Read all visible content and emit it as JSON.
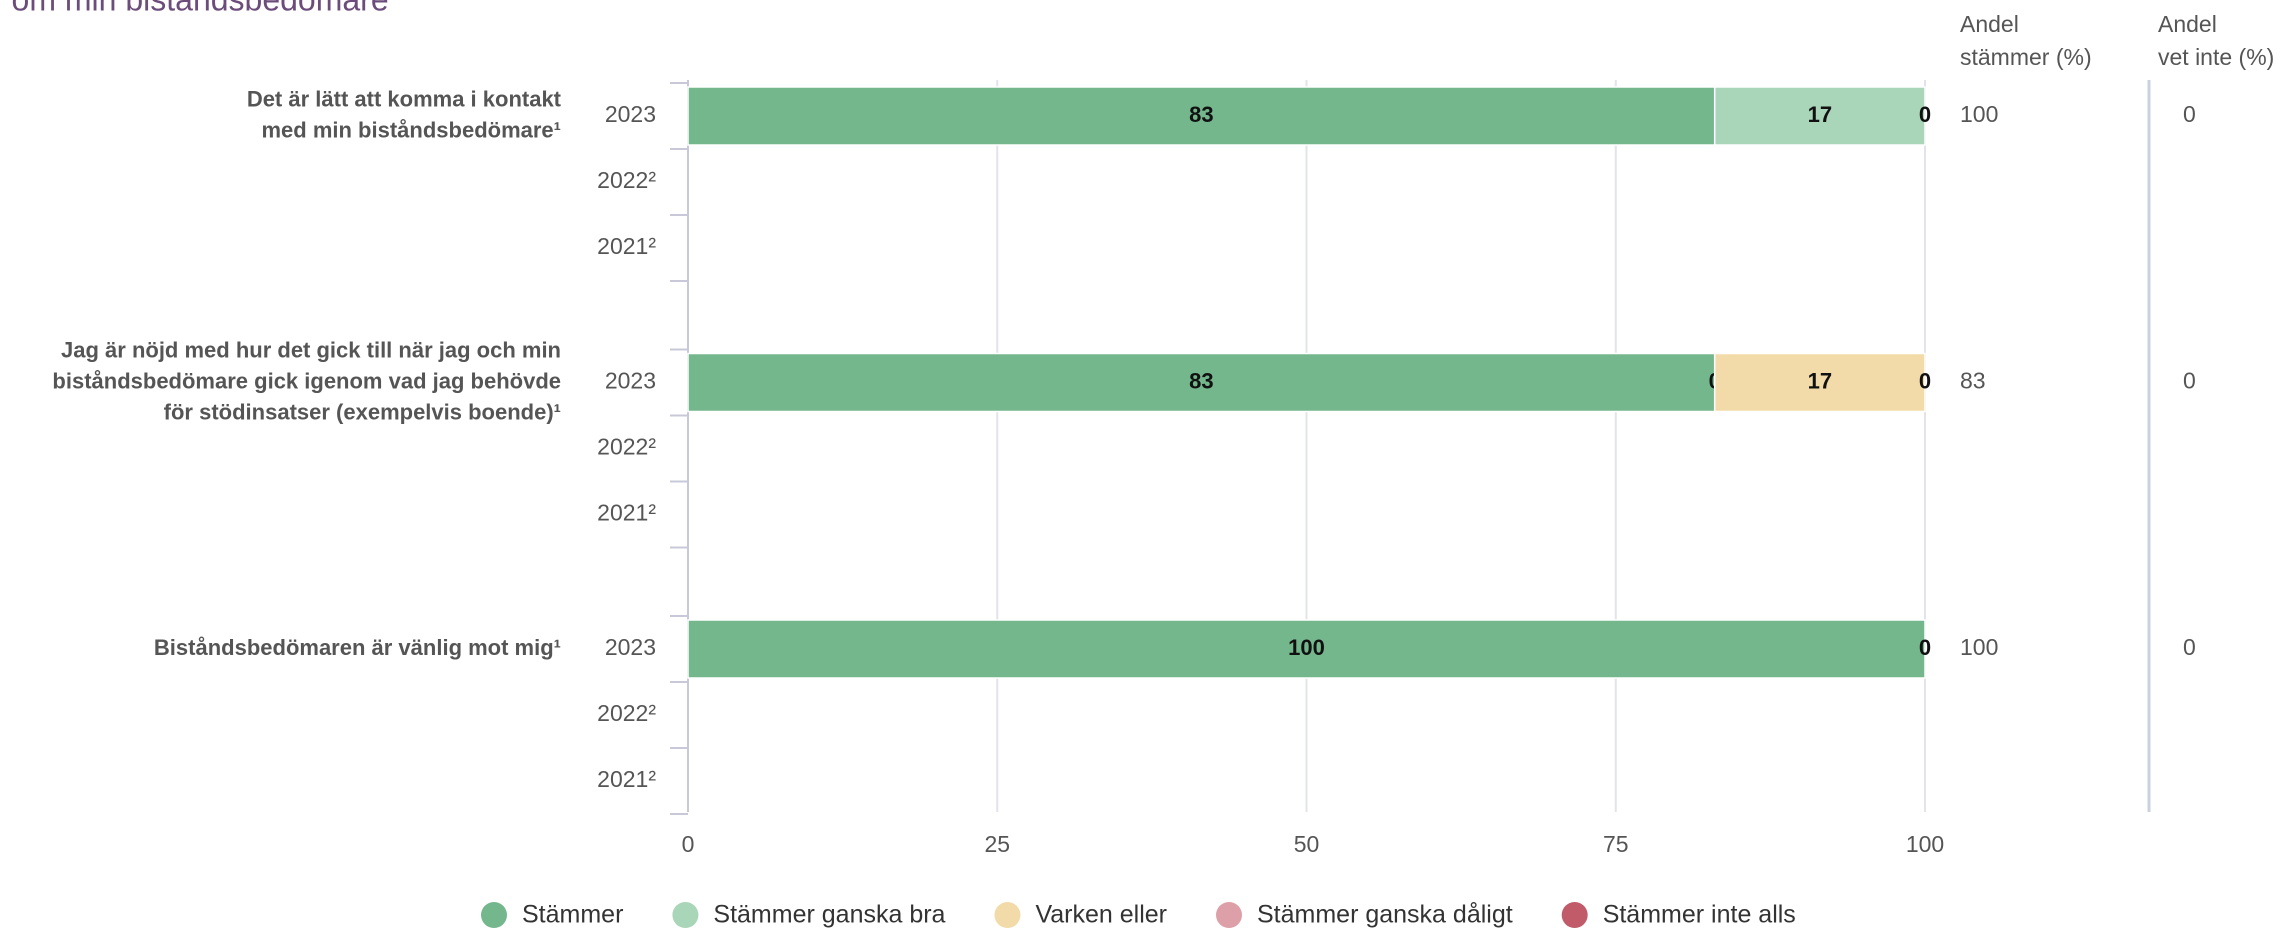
{
  "chart_data": {
    "type": "stacked-bar-horizontal",
    "title": "r om min biståndsbedömare",
    "questions": [
      [
        "Det är lätt att komma i kontakt",
        "med min biståndsbedömare¹"
      ],
      [
        "Jag är nöjd med hur det gick till när jag och min",
        "biståndsbedömare gick igenom vad jag behövde",
        "för stödinsatser (exempelvis boende)¹"
      ],
      [
        "Biståndsbedömaren är vänlig mot mig¹"
      ]
    ],
    "years": [
      "2023",
      "2022²",
      "2021²"
    ],
    "series": [
      {
        "name": "Stämmer",
        "color": "#74b78d",
        "values": [
          83,
          null,
          null,
          83,
          null,
          null,
          100,
          null,
          null
        ]
      },
      {
        "name": "Stämmer ganska bra",
        "color": "#a9d5b8",
        "values": [
          17,
          null,
          null,
          0,
          null,
          null,
          0,
          null,
          null
        ]
      },
      {
        "name": "Varken eller",
        "color": "#f2dba8",
        "values": [
          0,
          null,
          null,
          17,
          null,
          null,
          null,
          null,
          null
        ]
      },
      {
        "name": "Stämmer ganska dåligt",
        "color": "#dea0a8",
        "values": [
          null,
          null,
          null,
          0,
          null,
          null,
          null,
          null,
          null
        ]
      },
      {
        "name": "Stämmer inte alls",
        "color": "#c15b6a",
        "values": [
          null,
          null,
          null,
          null,
          null,
          null,
          null,
          null,
          null
        ]
      }
    ],
    "xlim": [
      0,
      100
    ],
    "xticks": [
      0,
      25,
      50,
      75,
      100
    ],
    "grid": true,
    "columns": [
      {
        "header": [
          "Andel",
          "stämmer (%)"
        ],
        "values": [
          100,
          83,
          100
        ]
      },
      {
        "header": [
          "Andel",
          "vet inte (%)"
        ],
        "values": [
          0,
          0,
          0
        ]
      }
    ]
  }
}
